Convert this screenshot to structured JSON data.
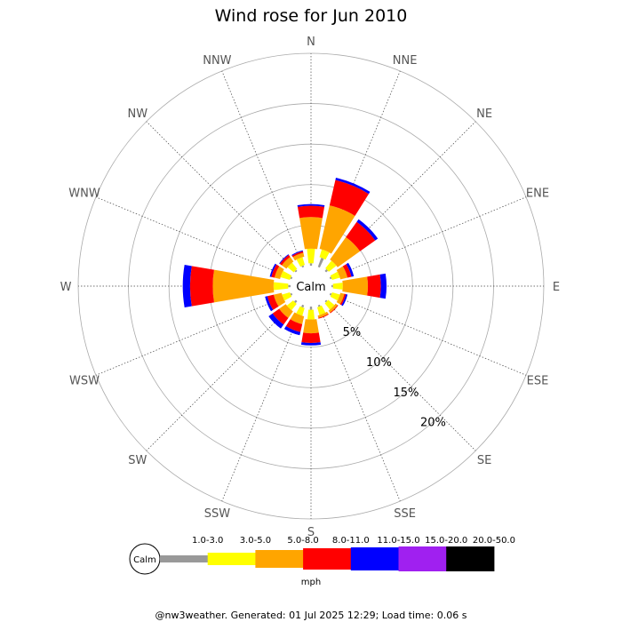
{
  "chart_data": {
    "type": "windrose",
    "title": "Wind rose for Jun 2010",
    "calm_label": "Calm",
    "unit": "mph",
    "directions": [
      "N",
      "NNE",
      "NE",
      "ENE",
      "E",
      "ESE",
      "SE",
      "SSE",
      "S",
      "SSW",
      "SW",
      "WSW",
      "W",
      "WNW",
      "NW",
      "NNW"
    ],
    "ring_labels": [
      "5%",
      "10%",
      "15%",
      "20%"
    ],
    "ring_values": [
      5,
      10,
      15,
      20
    ],
    "calm_pct": 1.8,
    "max_pct": 26.2,
    "bins": [
      {
        "label": "1.0-3.0",
        "color": "#999999"
      },
      {
        "label": "3.0-5.0",
        "color": "#ffff00"
      },
      {
        "label": "5.0-8.0",
        "color": "#ffa500"
      },
      {
        "label": "8.0-11.0",
        "color": "#ff0000"
      },
      {
        "label": "11.0-15.0",
        "color": "#0000ff"
      },
      {
        "label": "15.0-20.0",
        "color": "#a020f0"
      },
      {
        "label": "20.0-50.0",
        "color": "#000000"
      }
    ],
    "values": {
      "N": [
        0.3,
        1.8,
        3.9,
        1.4,
        0.2,
        0,
        0
      ],
      "NNE": [
        1.2,
        1.0,
        5.5,
        3.2,
        0.3,
        0,
        0
      ],
      "NE": [
        0.3,
        1.2,
        3.4,
        2.3,
        0.4,
        0,
        0
      ],
      "ENE": [
        0.2,
        1.0,
        0.9,
        0.5,
        0.3,
        0,
        0
      ],
      "E": [
        0.2,
        1.2,
        3.1,
        1.6,
        0.7,
        0,
        0
      ],
      "ESE": [
        0.2,
        1.0,
        0.5,
        0.2,
        0.2,
        0,
        0
      ],
      "SE": [
        0.2,
        1.0,
        0.3,
        0.1,
        0,
        0,
        0
      ],
      "SSE": [
        0.2,
        1.0,
        0.3,
        0.1,
        0,
        0,
        0
      ],
      "S": [
        0.4,
        1.2,
        1.7,
        1.2,
        0.3,
        0,
        0
      ],
      "SSW": [
        0.3,
        1.0,
        1.0,
        1.0,
        0.4,
        0,
        0
      ],
      "SW": [
        0.3,
        1.0,
        1.0,
        1.0,
        0.6,
        0,
        0
      ],
      "WSW": [
        0.2,
        1.0,
        1.0,
        0.8,
        0.3,
        0,
        0
      ],
      "W": [
        0.3,
        1.8,
        7.5,
        2.8,
        0.9,
        0,
        0
      ],
      "WNW": [
        0.2,
        1.2,
        0.7,
        0.4,
        0.2,
        0,
        0
      ],
      "NW": [
        0.2,
        1.0,
        0.7,
        0.3,
        0.1,
        0,
        0
      ],
      "NNW": [
        0.2,
        1.0,
        0.5,
        0.2,
        0.1,
        0,
        0
      ]
    }
  },
  "footer": "@nw3weather. Generated: 01 Jul 2025 12:29; Load time: 0.06 s"
}
